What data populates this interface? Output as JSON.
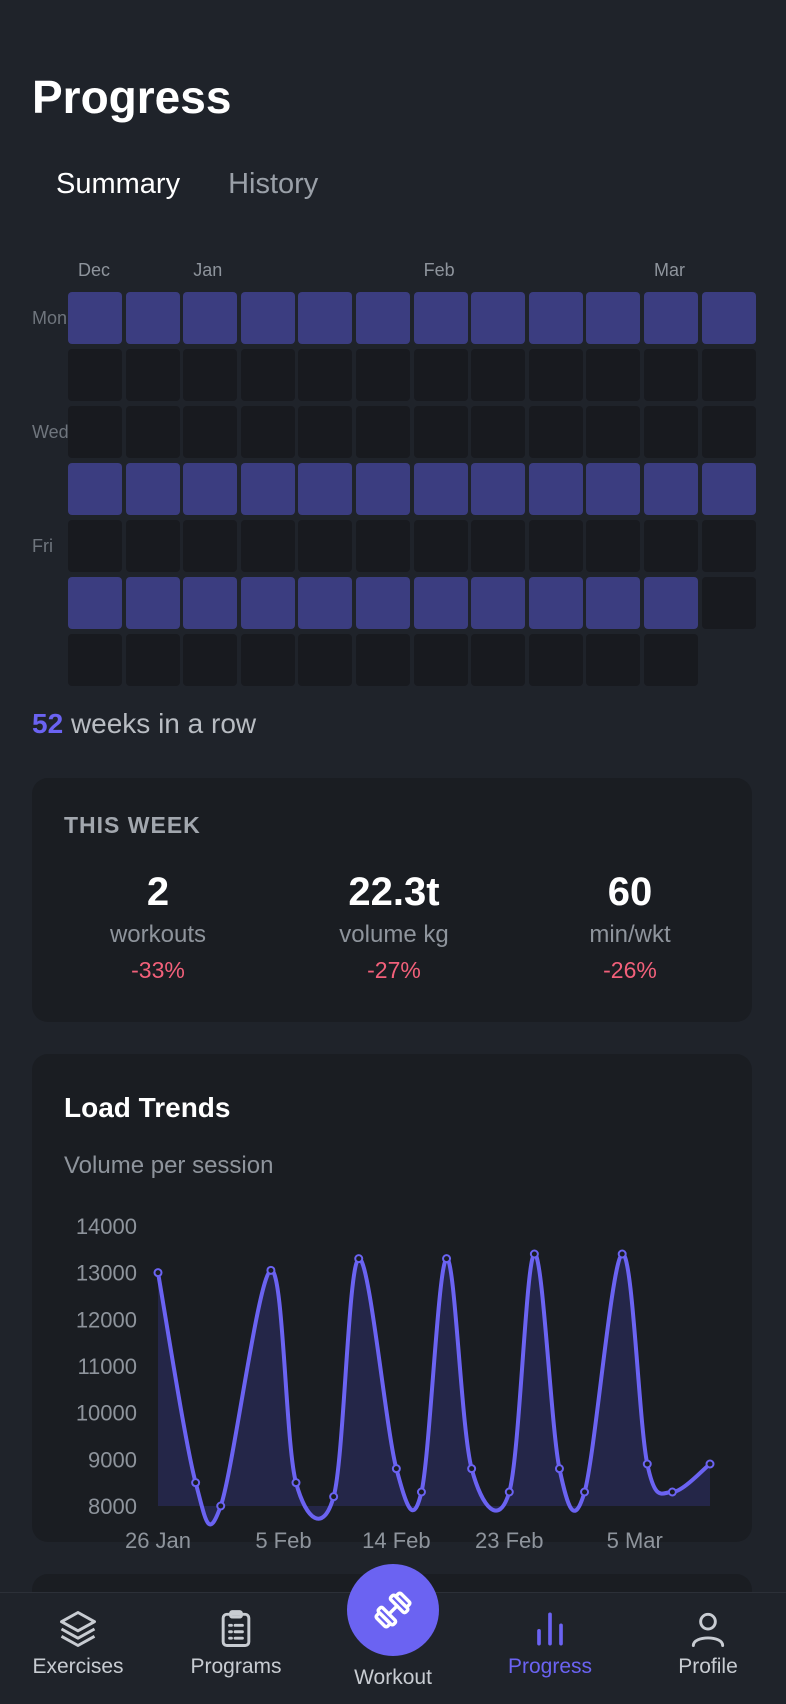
{
  "header": {
    "title": "Progress"
  },
  "tabs": [
    {
      "label": "Summary",
      "active": true
    },
    {
      "label": "History",
      "active": false
    }
  ],
  "heatmap": {
    "months": [
      {
        "label": "Dec",
        "week_index": 0
      },
      {
        "label": "Jan",
        "week_index": 2
      },
      {
        "label": "Feb",
        "week_index": 6
      },
      {
        "label": "Mar",
        "week_index": 10
      }
    ],
    "day_labels": [
      {
        "label": "Mon",
        "row": 0
      },
      {
        "label": "Wed",
        "row": 2
      },
      {
        "label": "Fri",
        "row": 4
      }
    ],
    "weeks": 12,
    "active_rows": [
      0,
      3,
      5
    ],
    "last_week_days": 5,
    "colors": {
      "active": "#3b3d80",
      "inactive": "#181a1f"
    }
  },
  "streak": {
    "count": "52",
    "text": "weeks in a row"
  },
  "this_week": {
    "title": "THIS WEEK",
    "stats": [
      {
        "value": "2",
        "label": "workouts",
        "change": "-33%"
      },
      {
        "value": "22.3t",
        "label": "volume kg",
        "change": "-27%"
      },
      {
        "value": "60",
        "label": "min/wkt",
        "change": "-26%"
      }
    ]
  },
  "load_trends": {
    "title": "Load Trends",
    "subtitle": "Volume per session"
  },
  "chart_data": {
    "type": "line",
    "ylabel": "",
    "xlabel": "",
    "ylim": [
      8000,
      14000
    ],
    "yticks": [
      14000,
      13000,
      12000,
      11000,
      10000,
      9000,
      8000
    ],
    "xticks": [
      "26 Jan",
      "5 Feb",
      "14 Feb",
      "23 Feb",
      "5 Mar"
    ],
    "x_dates": [
      "2025-01-26",
      "2025-01-29",
      "2025-01-31",
      "2025-02-04",
      "2025-02-06",
      "2025-02-09",
      "2025-02-11",
      "2025-02-14",
      "2025-02-16",
      "2025-02-18",
      "2025-02-20",
      "2025-02-23",
      "2025-02-25",
      "2025-02-27",
      "2025-03-01",
      "2025-03-04",
      "2025-03-06",
      "2025-03-08",
      "2025-03-11"
    ],
    "values": [
      13000,
      8500,
      8000,
      13050,
      8500,
      8200,
      13300,
      8800,
      8300,
      13300,
      8800,
      8300,
      13400,
      8800,
      8300,
      13400,
      8900,
      8300,
      8900
    ],
    "color": "#6b63f2"
  },
  "bottom_nav": {
    "items": [
      {
        "label": "Exercises",
        "icon": "layers-icon",
        "active": false
      },
      {
        "label": "Programs",
        "icon": "clipboard-icon",
        "active": false
      },
      {
        "label": "Progress",
        "icon": "bar-chart-icon",
        "active": true
      },
      {
        "label": "Profile",
        "icon": "user-icon",
        "active": false
      }
    ],
    "center": {
      "label": "Workout",
      "icon": "dumbbell-icon"
    },
    "active_color": "#6b63f2"
  }
}
